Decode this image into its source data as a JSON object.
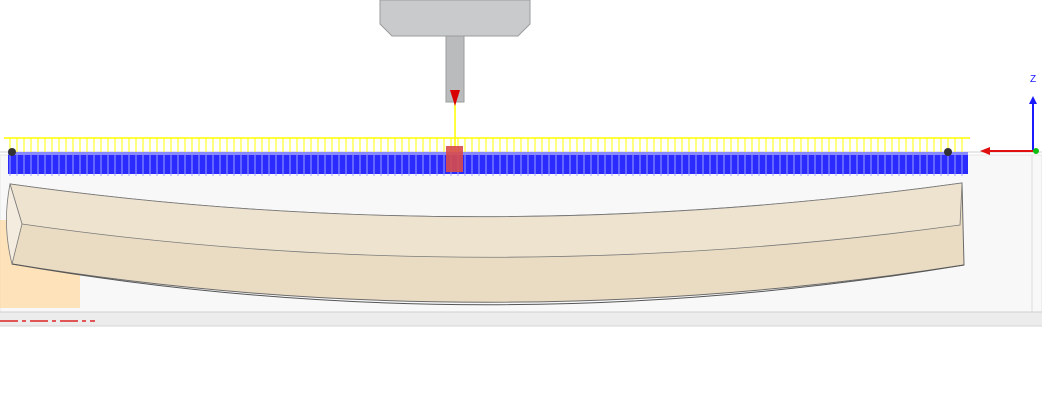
{
  "viewport": {
    "background": "#ffffff",
    "stock_fill": "#f7f7f7",
    "wood_color": "#eadcc3",
    "wood_edge": "#6b6b6b",
    "toolpath_cut_color": "#2b2bff",
    "toolpath_rapid_color": "#ffff00",
    "tool_color": "#c8cacc",
    "tool_tip_color": "#d90000",
    "tool_marker_color": "#d84a4a",
    "selection_highlight_color": "#ffd9a0",
    "ground_line_color": "#e05555"
  },
  "axis_triad": {
    "z_label": "Z",
    "z_color": "#1a1aff",
    "x_color": "#e01010",
    "y_color": "#10c010"
  },
  "scene": {
    "tool": "milling-tool",
    "part": "curved-wood-plank",
    "operation_view": "toolpath-simulation"
  }
}
